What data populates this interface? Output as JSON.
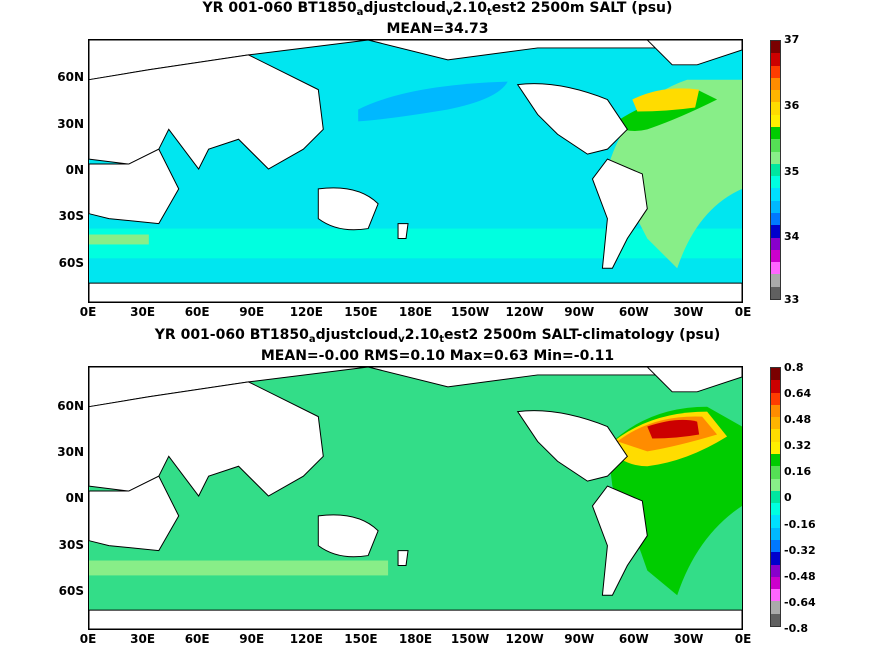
{
  "top": {
    "title_pre": "YR 001-060 BT1850",
    "sub1": "a",
    "title_mid1": "djustcloud",
    "sub2": "v",
    "title_mid2": "2.10",
    "sub3": "t",
    "title_post": "est2 2500m SALT (psu)",
    "stats": "MEAN=34.73",
    "colorbar_labels": [
      "37",
      "36",
      "35",
      "34",
      "33"
    ],
    "colors": [
      "#7a0000",
      "#cc0000",
      "#ff3c00",
      "#ff8c00",
      "#ffb400",
      "#ffdc00",
      "#fff000",
      "#00cc00",
      "#55e055",
      "#88ee88",
      "#00e6a0",
      "#00ffe0",
      "#00e0ff",
      "#00b8ff",
      "#0078ff",
      "#0000cc",
      "#8800cc",
      "#cc00cc",
      "#ff66ff",
      "#aaaaaa",
      "#606060"
    ]
  },
  "bottom": {
    "title_pre": "YR 001-060 BT1850",
    "sub1": "a",
    "title_mid1": "djustcloud",
    "sub2": "v",
    "title_mid2": "2.10",
    "sub3": "t",
    "title_post": "est2 2500m SALT-climatology (psu)",
    "stats": "MEAN=-0.00   RMS=0.10   Max=0.63   Min=-0.11",
    "colorbar_labels": [
      "0.8",
      "0.64",
      "0.48",
      "0.32",
      "0.16",
      "0",
      "-0.16",
      "-0.32",
      "-0.48",
      "-0.64",
      "-0.8"
    ],
    "colors": [
      "#7a0000",
      "#cc0000",
      "#ff3c00",
      "#ff8c00",
      "#ffb400",
      "#ffdc00",
      "#fff000",
      "#00cc00",
      "#55e055",
      "#88ee88",
      "#00e6a0",
      "#00ffe0",
      "#00e0ff",
      "#00b8ff",
      "#0078ff",
      "#0000cc",
      "#8800cc",
      "#cc00cc",
      "#ff66ff",
      "#aaaaaa",
      "#606060"
    ]
  },
  "lat_labels": [
    "60N",
    "30N",
    "0N",
    "30S",
    "60S"
  ],
  "lon_labels": [
    "0E",
    "30E",
    "60E",
    "90E",
    "120E",
    "150E",
    "180E",
    "150W",
    "120W",
    "90W",
    "60W",
    "30W",
    "0E"
  ]
}
